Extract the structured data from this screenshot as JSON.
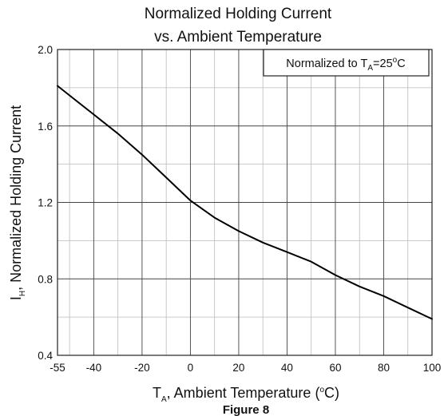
{
  "chart_data": {
    "type": "line",
    "title_line1": "Normalized Holding Current",
    "title_line2": "vs. Ambient Temperature",
    "annotation": {
      "prefix": "Normalized to T",
      "subscript": "A",
      "value": "=25",
      "superscript": "o",
      "unit": "C"
    },
    "xlabel": {
      "main": "T",
      "subscript": "A",
      "rest": ", Ambient Temperature (",
      "superscript": "o",
      "unit": "C)"
    },
    "ylabel": {
      "main": "I",
      "subscript": "H",
      "rest": ", Normalized Holding Current"
    },
    "caption": "Figure 8",
    "xlim": [
      -55,
      100
    ],
    "ylim": [
      0.4,
      2.0
    ],
    "x_ticks": [
      -55,
      -40,
      -20,
      0,
      20,
      40,
      60,
      80,
      100
    ],
    "x_tick_labels": [
      "-55",
      "-40",
      "-20",
      "0",
      "20",
      "40",
      "60",
      "80",
      "100"
    ],
    "y_ticks": [
      0.4,
      0.8,
      1.2,
      1.6,
      2.0
    ],
    "y_tick_labels": [
      "0.4",
      "0.8",
      "1.2",
      "1.6",
      "2.0"
    ],
    "x_minor_grid": [
      -50,
      -30,
      -10,
      10,
      30,
      50,
      70,
      90
    ],
    "y_minor_grid": [
      0.6,
      1.0,
      1.4,
      1.8
    ],
    "grid": true,
    "line_color": "#000000",
    "grid_major_color": "#444444",
    "grid_minor_color": "#bbbbbb",
    "series": [
      {
        "x": [
          -55,
          -50,
          -40,
          -30,
          -20,
          -10,
          0,
          10,
          20,
          30,
          40,
          50,
          60,
          70,
          80,
          90,
          100
        ],
        "y": [
          1.81,
          1.76,
          1.66,
          1.56,
          1.45,
          1.33,
          1.21,
          1.12,
          1.05,
          0.99,
          0.94,
          0.89,
          0.82,
          0.76,
          0.71,
          0.65,
          0.59
        ]
      }
    ]
  }
}
